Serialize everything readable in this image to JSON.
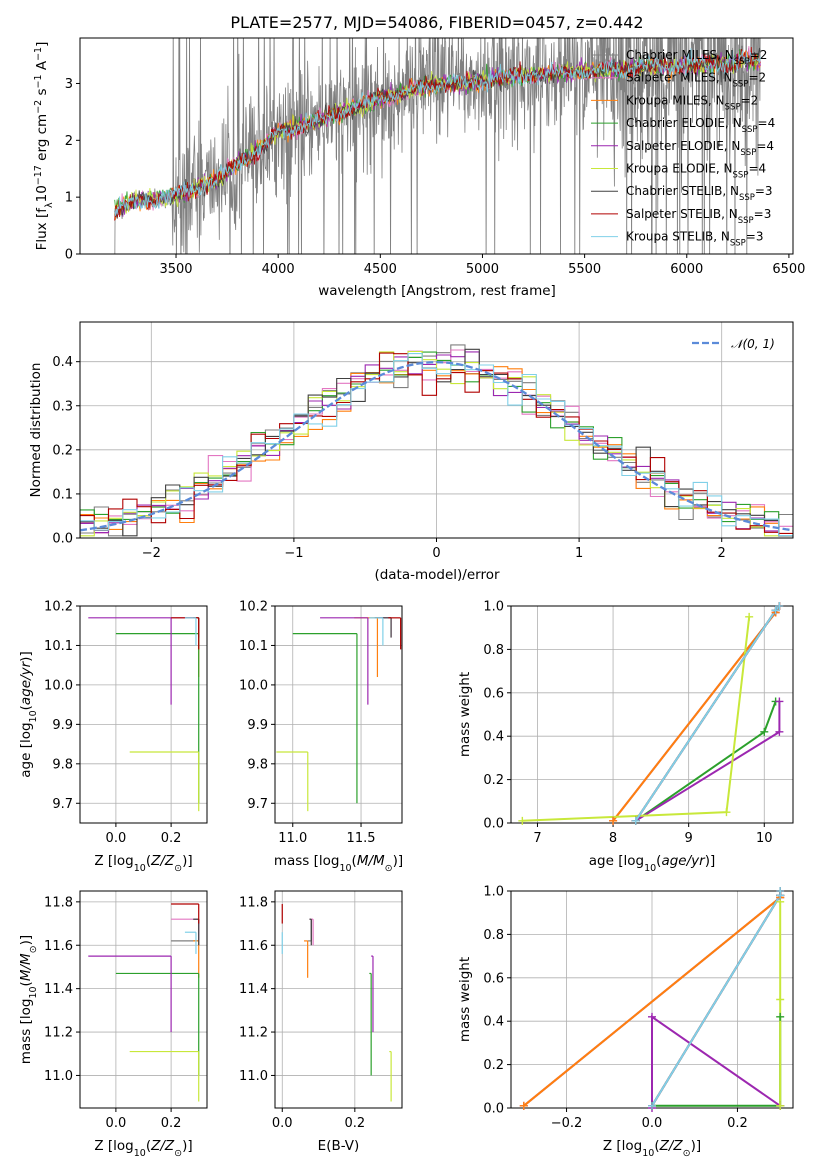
{
  "figure": {
    "title": "PLATE=2577, MJD=54086, FIBERID=0457, z=0.442"
  },
  "models": [
    {
      "name": "Chabrier MILES",
      "nssp": 2,
      "color": "#7f7f7f"
    },
    {
      "name": "Salpeter MILES",
      "nssp": 2,
      "color": "#e377c2"
    },
    {
      "name": "Kroupa MILES",
      "nssp": 2,
      "color": "#ff7f0e"
    },
    {
      "name": "Chabrier ELODIE",
      "nssp": 4,
      "color": "#2ca02c"
    },
    {
      "name": "Salpeter ELODIE",
      "nssp": 4,
      "color": "#9c27b0"
    },
    {
      "name": "Kroupa ELODIE",
      "nssp": 4,
      "color": "#c8e83a"
    },
    {
      "name": "Chabrier STELIB",
      "nssp": 3,
      "color": "#404040"
    },
    {
      "name": "Salpeter STELIB",
      "nssp": 3,
      "color": "#b00000"
    },
    {
      "name": "Kroupa STELIB",
      "nssp": 3,
      "color": "#80d0e8"
    }
  ],
  "chart_data": [
    {
      "id": "spectrum",
      "type": "line",
      "xlabel": "wavelength [Angstrom, rest frame]",
      "ylabel": "Flux [f_λ 10^-17 erg cm^-2 s^-1 A^-1]",
      "xlim": [
        3030,
        6520
      ],
      "ylim": [
        0,
        3.8
      ],
      "xticks": [
        3500,
        4000,
        4500,
        5000,
        5500,
        6000,
        6500
      ],
      "yticks": [
        0,
        1,
        2,
        3
      ],
      "grid": false,
      "legend": "top-right",
      "continuum": {
        "x": [
          3200,
          3300,
          3400,
          3500,
          3600,
          3700,
          3800,
          3900,
          4000,
          4100,
          4200,
          4300,
          4400,
          4500,
          4600,
          4700,
          4800,
          4900,
          5000,
          5100,
          5200,
          5300,
          5400,
          5500,
          5600,
          5700,
          5800,
          5900,
          6000,
          6100,
          6200,
          6300,
          6360
        ],
        "flux": [
          0.75,
          0.95,
          0.95,
          1.05,
          1.15,
          1.3,
          1.6,
          1.8,
          2.15,
          2.25,
          2.35,
          2.5,
          2.6,
          2.75,
          2.8,
          2.95,
          3.0,
          3.0,
          3.05,
          3.1,
          3.15,
          3.15,
          3.2,
          3.2,
          3.25,
          3.25,
          3.3,
          3.3,
          3.3,
          3.35,
          3.35,
          3.4,
          3.4
        ]
      },
      "data_range": [
        3200,
        6360
      ]
    },
    {
      "id": "residuals",
      "type": "bar",
      "xlabel": "(data-model)/error",
      "ylabel": "Normed distribution",
      "xlim": [
        -2.5,
        2.5
      ],
      "ylim": [
        0,
        0.49
      ],
      "xticks": [
        -2,
        -1,
        0,
        1,
        2
      ],
      "yticks": [
        0.0,
        0.1,
        0.2,
        0.3,
        0.4
      ],
      "grid": true,
      "legend": "top-right",
      "reference_curve": {
        "label": "𝒩(0, 1)",
        "mean": 0,
        "sigma": 1,
        "color": "#5b8bd9"
      },
      "bin_width": 0.1
    },
    {
      "id": "age-vs-Z",
      "type": "scatter",
      "xlabel": "Z [log10(Z/Z⊙)]",
      "ylabel": "age  [log10(age/yr)]",
      "xlim": [
        -0.13,
        0.33
      ],
      "ylim": [
        9.65,
        10.2
      ],
      "xticks": [
        0.0,
        0.2
      ],
      "yticks": [
        9.7,
        9.8,
        9.9,
        10.0,
        10.1,
        10.2
      ],
      "grid": true
    },
    {
      "id": "age-vs-mass",
      "type": "scatter",
      "xlabel": "mass [log10(M/M⊙)]",
      "ylabel": "",
      "xlim": [
        10.87,
        11.8
      ],
      "ylim": [
        9.65,
        10.2
      ],
      "xticks": [
        11.0,
        11.5
      ],
      "yticks": [
        9.7,
        9.8,
        9.9,
        10.0,
        10.1,
        10.2
      ],
      "grid": true
    },
    {
      "id": "massweight-vs-age",
      "type": "line",
      "xlabel": "age  [log10(age/yr)]",
      "ylabel": "mass weight",
      "xlim": [
        6.65,
        10.38
      ],
      "ylim": [
        0,
        1.0
      ],
      "xticks": [
        7,
        8,
        9,
        10
      ],
      "yticks": [
        0.0,
        0.2,
        0.4,
        0.6,
        0.8,
        1.0
      ],
      "grid": true
    },
    {
      "id": "mass-vs-Z",
      "type": "scatter",
      "xlabel": "Z [log10(Z/Z⊙)]",
      "ylabel": "mass [log10(M/M⊙)]",
      "xlim": [
        -0.13,
        0.33
      ],
      "ylim": [
        10.85,
        11.85
      ],
      "xticks": [
        0.0,
        0.2
      ],
      "yticks": [
        11.0,
        11.2,
        11.4,
        11.6,
        11.8
      ],
      "grid": true
    },
    {
      "id": "mass-vs-ebv",
      "type": "scatter",
      "xlabel": "E(B-V)",
      "ylabel": "",
      "xlim": [
        -0.02,
        0.33
      ],
      "ylim": [
        10.85,
        11.85
      ],
      "xticks": [
        0.0,
        0.2
      ],
      "yticks": [
        11.0,
        11.2,
        11.4,
        11.6,
        11.8
      ],
      "grid": true
    },
    {
      "id": "massweight-vs-Z",
      "type": "line",
      "xlabel": "Z [log10(Z/Z⊙)]",
      "ylabel": "mass weight",
      "xlim": [
        -0.33,
        0.33
      ],
      "ylim": [
        0,
        1.0
      ],
      "xticks": [
        -0.2,
        0.0,
        0.2
      ],
      "yticks": [
        0.0,
        0.2,
        0.4,
        0.6,
        0.8,
        1.0
      ],
      "grid": true
    }
  ],
  "fits": [
    {
      "model": 0,
      "age": 10.17,
      "age_lo": 10.17,
      "Z": 0.3,
      "Z_lo": 0.2,
      "mass": 11.62,
      "mass_lo": 11.72,
      "ebv": 0.08,
      "ebv_lo": 0.07,
      "sfh_age": [
        8.0,
        10.15,
        10.2
      ],
      "sfh_weight": [
        0.01,
        0.97,
        1.0
      ],
      "zw_Z": [
        -0.3,
        0.3,
        0.3
      ],
      "zw_w": [
        0.01,
        0.97,
        1.0
      ]
    },
    {
      "model": 1,
      "age": 10.17,
      "age_lo": 10.12,
      "Z": 0.3,
      "Z_lo": 0.2,
      "mass": 11.72,
      "mass_lo": 11.6,
      "ebv": 0.085,
      "ebv_lo": 0.075,
      "sfh_age": [
        8.0,
        10.15,
        10.2
      ],
      "sfh_weight": [
        0.01,
        0.97,
        1.0
      ],
      "zw_Z": [
        -0.3,
        0.3,
        0.3
      ],
      "zw_w": [
        0.01,
        0.97,
        1.0
      ]
    },
    {
      "model": 2,
      "age": 10.17,
      "age_lo": 10.02,
      "Z": 0.3,
      "Z_lo": 0.28,
      "mass": 11.62,
      "mass_lo": 11.45,
      "ebv": 0.07,
      "ebv_lo": 0.06,
      "sfh_age": [
        8.0,
        10.15,
        10.2
      ],
      "sfh_weight": [
        0.01,
        0.97,
        1.0
      ],
      "zw_Z": [
        -0.3,
        0.3,
        0.3
      ],
      "zw_w": [
        0.01,
        0.97,
        1.0
      ]
    },
    {
      "model": 3,
      "age": 10.13,
      "age_lo": 9.7,
      "Z": 0.3,
      "Z_lo": 0.0,
      "mass": 11.47,
      "mass_lo": 11.0,
      "ebv": 0.245,
      "ebv_lo": 0.24,
      "sfh_age": [
        8.3,
        10.0,
        10.15
      ],
      "sfh_weight": [
        0.01,
        0.42,
        0.56
      ],
      "zw_Z": [
        0.0,
        0.3,
        0.3
      ],
      "zw_w": [
        0.01,
        0.01,
        0.42
      ]
    },
    {
      "model": 4,
      "age": 10.17,
      "age_lo": 9.95,
      "Z": 0.2,
      "Z_lo": -0.1,
      "mass": 11.55,
      "mass_lo": 11.2,
      "ebv": 0.25,
      "ebv_lo": 0.245,
      "sfh_age": [
        8.3,
        10.2,
        10.2
      ],
      "sfh_weight": [
        0.01,
        0.42,
        0.56
      ],
      "zw_Z": [
        0.0,
        0.0,
        0.3
      ],
      "zw_w": [
        0.0,
        0.42,
        0.01
      ]
    },
    {
      "model": 5,
      "age": 9.83,
      "age_lo": 9.68,
      "Z": 0.3,
      "Z_lo": 0.05,
      "mass": 11.11,
      "mass_lo": 10.88,
      "ebv": 0.3,
      "ebv_lo": 0.295,
      "sfh_age": [
        6.8,
        9.5,
        9.8
      ],
      "sfh_weight": [
        0.01,
        0.05,
        0.95
      ],
      "zw_Z": [
        0.3,
        0.3,
        0.3
      ],
      "zw_w": [
        0.01,
        0.5,
        0.95
      ]
    },
    {
      "model": 6,
      "age": 10.17,
      "age_lo": 10.12,
      "Z": 0.3,
      "Z_lo": 0.28,
      "mass": 11.72,
      "mass_lo": 11.6,
      "ebv": 0.08,
      "ebv_lo": 0.075,
      "sfh_age": [
        8.3,
        10.15,
        10.2
      ],
      "sfh_weight": [
        0.01,
        0.98,
        1.0
      ],
      "zw_Z": [
        0.0,
        0.3,
        0.3
      ],
      "zw_w": [
        0.01,
        0.98,
        1.0
      ]
    },
    {
      "model": 7,
      "age": 10.17,
      "age_lo": 10.09,
      "Z": 0.3,
      "Z_lo": 0.2,
      "mass": 11.79,
      "mass_lo": 11.7,
      "ebv": 0.0,
      "ebv_lo": 0.0,
      "sfh_age": [
        8.3,
        10.15,
        10.2
      ],
      "sfh_weight": [
        0.01,
        0.98,
        1.0
      ],
      "zw_Z": [
        0.0,
        0.3,
        0.3
      ],
      "zw_w": [
        0.01,
        0.98,
        1.0
      ]
    },
    {
      "model": 8,
      "age": 10.17,
      "age_lo": 10.1,
      "Z": 0.29,
      "Z_lo": 0.25,
      "mass": 11.66,
      "mass_lo": 11.56,
      "ebv": 0.0,
      "ebv_lo": 0.0,
      "sfh_age": [
        8.3,
        10.15,
        10.2
      ],
      "sfh_weight": [
        0.01,
        0.98,
        1.0
      ],
      "zw_Z": [
        0.0,
        0.3,
        0.3
      ],
      "zw_w": [
        0.01,
        0.98,
        1.0
      ]
    }
  ]
}
